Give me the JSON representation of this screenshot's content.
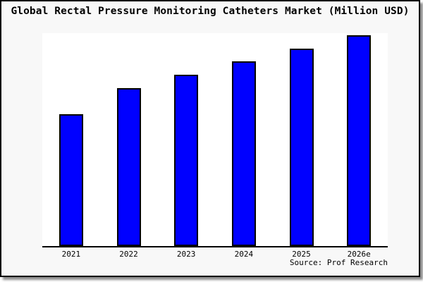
{
  "title": "Global Rectal Pressure Monitoring Catheters Market (Million USD)",
  "source": "Source: Prof Research",
  "colors": {
    "bar_fill": "#0000ff",
    "bar_border": "#000000",
    "axis": "#000000",
    "plot_background": "#ffffff",
    "card_background": "#f8f8f8",
    "text": "#000000"
  },
  "chart_data": {
    "type": "bar",
    "title": "Global Rectal Pressure Monitoring Catheters Market (Million USD)",
    "categories": [
      "2021",
      "2022",
      "2023",
      "2024",
      "2025",
      "2026e"
    ],
    "values": [
      62.4,
      74.8,
      81.3,
      87.6,
      93.6,
      100
    ],
    "value_note": "No y-axis ticks or data labels are visible; values are bar heights normalized so that the 2026e bar = 100.",
    "xlabel": "",
    "ylabel": "",
    "ylim": [
      0,
      101
    ],
    "grid": false,
    "legend": null,
    "source": "Source: Prof Research",
    "bar_color": "#0000ff"
  }
}
